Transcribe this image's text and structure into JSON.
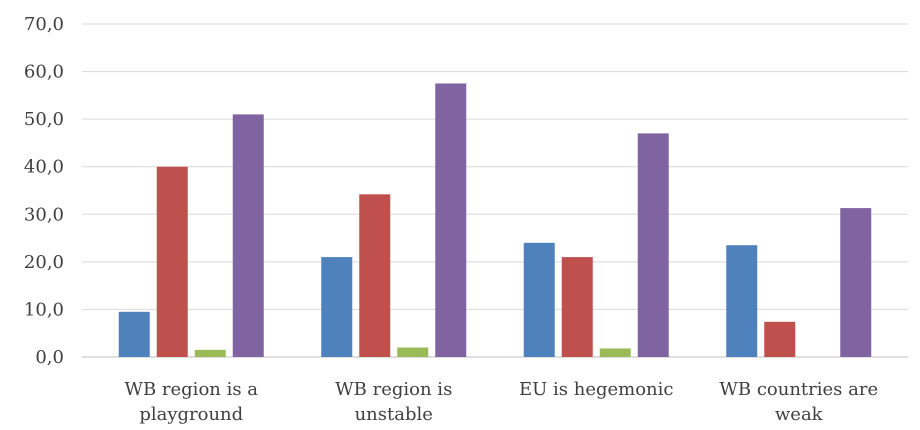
{
  "chart_data": {
    "type": "bar",
    "title": "",
    "xlabel": "",
    "ylabel": "",
    "ylim": [
      0,
      70
    ],
    "ytick_step": 10,
    "ytick_labels": [
      "0,0",
      "10,0",
      "20,0",
      "30,0",
      "40,0",
      "50,0",
      "60,0",
      "70,0"
    ],
    "grid": true,
    "legend": "none",
    "categories": [
      [
        "WB region is a",
        "playground"
      ],
      [
        "WB region is",
        "unstable"
      ],
      [
        "EU is hegemonic"
      ],
      [
        "WB countries are",
        "weak"
      ]
    ],
    "series": [
      {
        "color": "#4f81bd",
        "values": [
          9.5,
          21.0,
          24.0,
          23.5
        ]
      },
      {
        "color": "#c0504d",
        "values": [
          40.0,
          34.2,
          21.0,
          7.4
        ]
      },
      {
        "color": "#9bbb59",
        "values": [
          1.5,
          2.0,
          1.8,
          0.0
        ]
      },
      {
        "color": "#8064a2",
        "values": [
          51.0,
          57.5,
          47.0,
          31.3
        ]
      }
    ]
  }
}
